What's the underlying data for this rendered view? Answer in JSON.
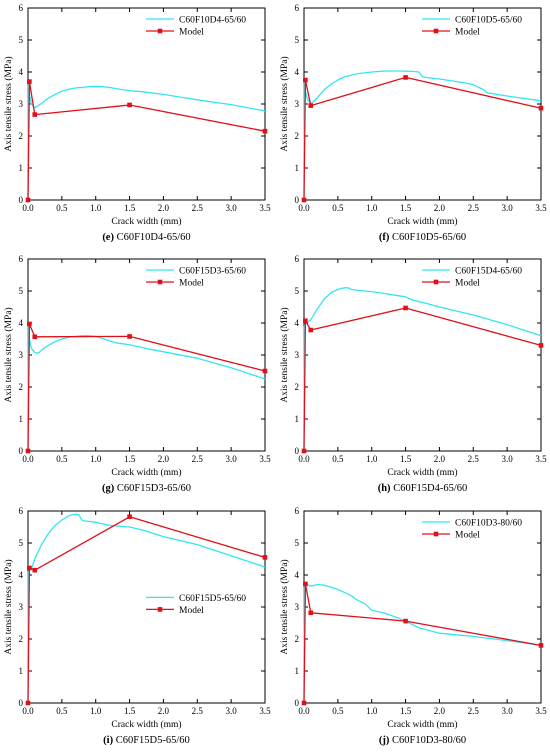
{
  "colors": {
    "experiment": "#33e6ee",
    "model": "#e0101a"
  },
  "chart_data": [
    {
      "type": "line",
      "caption_letter": "(e)",
      "caption_text": " C60F10D4-65/60",
      "xlabel": "Crack width (mm)",
      "ylabel": "Axis tensile stress (MPa)",
      "xlim": [
        0,
        3.5
      ],
      "ylim": [
        0,
        6
      ],
      "xticks": [
        0,
        0.5,
        1.0,
        1.5,
        2.0,
        2.5,
        3.0,
        3.5
      ],
      "yticks": [
        0,
        1,
        2,
        3,
        4,
        5,
        6
      ],
      "xtick_labels": [
        "0.0",
        "0.5",
        "1.0",
        "1.5",
        "2.0",
        "2.5",
        "3.0",
        "3.5"
      ],
      "ytick_labels": [
        "0",
        "1",
        "2",
        "3",
        "4",
        "5",
        "6"
      ],
      "legend_position": "top-right",
      "series": [
        {
          "name": "C60F10D4-65/60",
          "kind": "experiment",
          "x": [
            0,
            0.005,
            0.02,
            0.05,
            0.1,
            0.2,
            0.3,
            0.4,
            0.5,
            0.6,
            0.7,
            0.8,
            0.9,
            1.0,
            1.1,
            1.2,
            1.3,
            1.4,
            1.5,
            1.7,
            2.0,
            2.3,
            2.6,
            3.0,
            3.5
          ],
          "y": [
            0,
            3.6,
            3.3,
            3.0,
            2.88,
            3.02,
            3.18,
            3.3,
            3.4,
            3.46,
            3.5,
            3.52,
            3.54,
            3.55,
            3.54,
            3.52,
            3.48,
            3.45,
            3.42,
            3.38,
            3.3,
            3.2,
            3.1,
            2.98,
            2.78
          ]
        },
        {
          "name": "Model",
          "kind": "model",
          "x": [
            0,
            0.02,
            0.1,
            1.5,
            3.5
          ],
          "y": [
            0,
            3.7,
            2.67,
            2.97,
            2.15
          ]
        }
      ]
    },
    {
      "type": "line",
      "caption_letter": "(f)",
      "caption_text": " C60F10D5-65/60",
      "xlabel": "Crack width (mm)",
      "ylabel": "Axis tensile stress (MPa)",
      "xlim": [
        0,
        3.5
      ],
      "ylim": [
        0,
        6
      ],
      "xticks": [
        0,
        0.5,
        1.0,
        1.5,
        2.0,
        2.5,
        3.0,
        3.5
      ],
      "yticks": [
        0,
        1,
        2,
        3,
        4,
        5,
        6
      ],
      "xtick_labels": [
        "0.0",
        "0.5",
        "1.0",
        "1.5",
        "2.0",
        "2.5",
        "3.0",
        "3.5"
      ],
      "ytick_labels": [
        "0",
        "1",
        "2",
        "3",
        "4",
        "5",
        "6"
      ],
      "legend_position": "top-right",
      "series": [
        {
          "name": "C60F10D5-65/60",
          "kind": "experiment",
          "x": [
            0,
            0.005,
            0.02,
            0.05,
            0.1,
            0.2,
            0.3,
            0.4,
            0.5,
            0.6,
            0.8,
            1.0,
            1.2,
            1.4,
            1.6,
            1.7,
            1.75,
            1.8,
            2.0,
            2.2,
            2.4,
            2.5,
            2.6,
            2.65,
            2.7,
            3.0,
            3.5
          ],
          "y": [
            0,
            3.8,
            3.4,
            3.15,
            3.0,
            3.2,
            3.45,
            3.62,
            3.75,
            3.85,
            3.95,
            4.0,
            4.03,
            4.03,
            4.02,
            4.0,
            3.85,
            3.83,
            3.78,
            3.72,
            3.65,
            3.6,
            3.5,
            3.45,
            3.35,
            3.25,
            3.1
          ]
        },
        {
          "name": "Model",
          "kind": "model",
          "x": [
            0,
            0.02,
            0.1,
            1.5,
            3.5
          ],
          "y": [
            0,
            3.75,
            2.95,
            3.83,
            2.87
          ]
        }
      ]
    },
    {
      "type": "line",
      "caption_letter": "(g)",
      "caption_text": " C60F15D3-65/60",
      "xlabel": "Crack width (mm)",
      "ylabel": "Axis tensile stress (MPa)",
      "xlim": [
        0,
        3.5
      ],
      "ylim": [
        0,
        6
      ],
      "xticks": [
        0,
        0.5,
        1.0,
        1.5,
        2.0,
        2.5,
        3.0,
        3.5
      ],
      "yticks": [
        0,
        1,
        2,
        3,
        4,
        5,
        6
      ],
      "xtick_labels": [
        "0.0",
        "0.5",
        "1.0",
        "1.5",
        "2.0",
        "2.5",
        "3.0",
        "3.5"
      ],
      "ytick_labels": [
        "0",
        "1",
        "2",
        "3",
        "4",
        "5",
        "6"
      ],
      "legend_position": "top-right",
      "series": [
        {
          "name": "C60F15D3-65/60",
          "kind": "experiment",
          "x": [
            0,
            0.005,
            0.02,
            0.05,
            0.1,
            0.15,
            0.2,
            0.3,
            0.4,
            0.5,
            0.6,
            0.7,
            0.8,
            0.9,
            1.0,
            1.1,
            1.2,
            1.3,
            1.5,
            1.8,
            2.0,
            2.5,
            3.0,
            3.5
          ],
          "y": [
            0,
            3.9,
            3.5,
            3.2,
            3.08,
            3.05,
            3.15,
            3.3,
            3.42,
            3.5,
            3.55,
            3.58,
            3.6,
            3.6,
            3.58,
            3.52,
            3.44,
            3.38,
            3.32,
            3.18,
            3.1,
            2.9,
            2.6,
            2.25
          ]
        },
        {
          "name": "Model",
          "kind": "model",
          "x": [
            0,
            0.02,
            0.1,
            1.5,
            3.5
          ],
          "y": [
            0,
            3.97,
            3.57,
            3.58,
            2.5
          ]
        }
      ]
    },
    {
      "type": "line",
      "caption_letter": "(h)",
      "caption_text": " C60F15D4-65/60",
      "xlabel": "Crack width (mm)",
      "ylabel": "Axis tensile stress (MPa)",
      "xlim": [
        0,
        3.5
      ],
      "ylim": [
        0,
        6
      ],
      "xticks": [
        0,
        0.5,
        1.0,
        1.5,
        2.0,
        2.5,
        3.0,
        3.5
      ],
      "yticks": [
        0,
        1,
        2,
        3,
        4,
        5,
        6
      ],
      "xtick_labels": [
        "0.0",
        "0.5",
        "1.0",
        "1.5",
        "2.0",
        "2.5",
        "3.0",
        "3.5"
      ],
      "ytick_labels": [
        "0",
        "1",
        "2",
        "3",
        "4",
        "5",
        "6"
      ],
      "legend_position": "top-right",
      "series": [
        {
          "name": "C60F15D4-65/60",
          "kind": "experiment",
          "x": [
            0,
            0.005,
            0.02,
            0.05,
            0.1,
            0.2,
            0.3,
            0.4,
            0.5,
            0.6,
            0.65,
            0.7,
            0.8,
            1.0,
            1.2,
            1.4,
            1.5,
            1.6,
            1.8,
            2.0,
            2.5,
            3.0,
            3.5
          ],
          "y": [
            0,
            3.9,
            4.0,
            4.02,
            4.1,
            4.45,
            4.75,
            4.95,
            5.05,
            5.1,
            5.1,
            5.05,
            5.02,
            4.98,
            4.92,
            4.85,
            4.82,
            4.72,
            4.62,
            4.5,
            4.25,
            3.95,
            3.6
          ]
        },
        {
          "name": "Model",
          "kind": "model",
          "x": [
            0,
            0.02,
            0.1,
            1.5,
            3.5
          ],
          "y": [
            0,
            4.07,
            3.78,
            4.47,
            3.3
          ]
        }
      ]
    },
    {
      "type": "line",
      "caption_letter": "(i)",
      "caption_text": " C60F15D5-65/60",
      "xlabel": "Crack width (mm)",
      "ylabel": "Axis tensile stress (MPa)",
      "xlim": [
        0,
        3.5
      ],
      "ylim": [
        0,
        6
      ],
      "xticks": [
        0,
        0.5,
        1.0,
        1.5,
        2.0,
        2.5,
        3.0,
        3.5
      ],
      "yticks": [
        0,
        1,
        2,
        3,
        4,
        5,
        6
      ],
      "xtick_labels": [
        "0.0",
        "0.5",
        "1.0",
        "1.5",
        "2.0",
        "2.5",
        "3.0",
        "3.5"
      ],
      "ytick_labels": [
        "0",
        "1",
        "2",
        "3",
        "4",
        "5",
        "6"
      ],
      "legend_position": "right",
      "series": [
        {
          "name": "C60F15D5-65/60",
          "kind": "experiment",
          "x": [
            0,
            0.005,
            0.02,
            0.05,
            0.1,
            0.2,
            0.3,
            0.4,
            0.5,
            0.6,
            0.7,
            0.75,
            0.8,
            1.0,
            1.2,
            1.5,
            1.7,
            2.0,
            2.5,
            3.0,
            3.5
          ],
          "y": [
            0,
            4.1,
            4.15,
            4.2,
            4.5,
            4.95,
            5.3,
            5.55,
            5.72,
            5.85,
            5.9,
            5.88,
            5.7,
            5.65,
            5.55,
            5.5,
            5.4,
            5.2,
            4.95,
            4.6,
            4.25
          ]
        },
        {
          "name": "Model",
          "kind": "model",
          "x": [
            0,
            0.02,
            0.1,
            1.5,
            3.5
          ],
          "y": [
            0,
            4.22,
            4.15,
            5.82,
            4.55
          ]
        }
      ]
    },
    {
      "type": "line",
      "caption_letter": "(j)",
      "caption_text": " C60F10D3-80/60",
      "xlabel": "Crack width (mm)",
      "ylabel": "Axis tensile stress (MPa)",
      "xlim": [
        0,
        3.5
      ],
      "ylim": [
        0,
        6
      ],
      "xticks": [
        0,
        0.5,
        1.0,
        1.5,
        2.0,
        2.5,
        3.0,
        3.5
      ],
      "yticks": [
        0,
        1,
        2,
        3,
        4,
        5,
        6
      ],
      "xtick_labels": [
        "0.0",
        "0.5",
        "1.0",
        "1.5",
        "2.0",
        "2.5",
        "3.0",
        "3.5"
      ],
      "ytick_labels": [
        "0",
        "1",
        "2",
        "3",
        "4",
        "5",
        "6"
      ],
      "legend_position": "top-right",
      "series": [
        {
          "name": "C60F10D3-80/60",
          "kind": "experiment",
          "x": [
            0,
            0.005,
            0.02,
            0.05,
            0.1,
            0.2,
            0.3,
            0.4,
            0.5,
            0.6,
            0.7,
            0.8,
            0.9,
            1.0,
            1.2,
            1.4,
            1.5,
            1.7,
            2.0,
            2.5,
            3.0,
            3.5
          ],
          "y": [
            0,
            3.7,
            3.72,
            3.7,
            3.65,
            3.7,
            3.68,
            3.62,
            3.55,
            3.45,
            3.35,
            3.2,
            3.1,
            2.9,
            2.8,
            2.65,
            2.55,
            2.35,
            2.18,
            2.08,
            1.95,
            1.8
          ]
        },
        {
          "name": "Model",
          "kind": "model",
          "x": [
            0,
            0.02,
            0.1,
            1.5,
            3.5
          ],
          "y": [
            0,
            3.72,
            2.82,
            2.56,
            1.8
          ]
        }
      ]
    }
  ]
}
